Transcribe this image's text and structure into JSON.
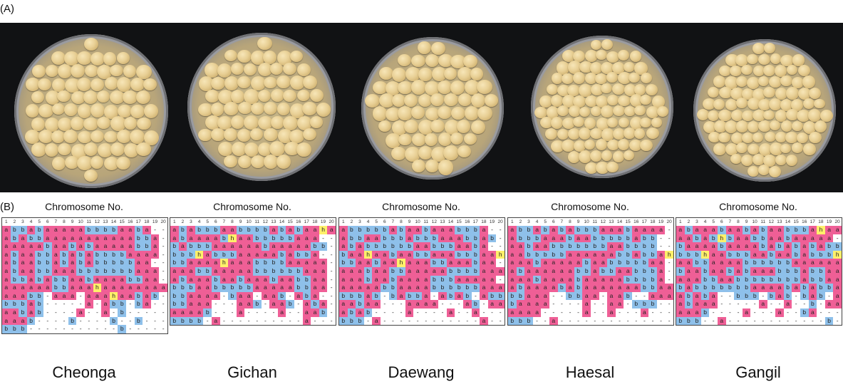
{
  "panel_a_label": "(A)",
  "panel_b_label": "(B)",
  "chromosome_title": "Chromosome No.",
  "chromosome_numbers": [
    "1",
    "2",
    "3",
    "4",
    "5",
    "6",
    "7",
    "8",
    "9",
    "10",
    "11",
    "12",
    "13",
    "14",
    "15",
    "16",
    "17",
    "18",
    "19",
    "20"
  ],
  "colors": {
    "a": "#ef5f96",
    "b": "#8ec0ea",
    "h": "#fff06a",
    "missing": "#ffffff",
    "background": "#111214"
  },
  "cultivars": [
    {
      "name": "Cheonga",
      "rows": [
        "abbabaaaaabbbbaaba",
        "ababbaaaaaaaaaaabba",
        "aaaaabaababaaaaabba",
        "abaabbabababbbbaaaa",
        "abaabbabababbbbbaa",
        "abaabbaaabbbbbbbaaa",
        "abbababbaabaaaabbaa",
        "aaaaaabbaaahaaaaaaaa",
        "aaabb-aaa-aaahaabab",
        "bbbab-----a-abb-ba-",
        "aabab----a--a-b---",
        "aaab----b----b--b---",
        "bbb-----------b----"
      ]
    },
    {
      "name": "Gichan",
      "rows": [
        "ababbbaabbbbababaahaa",
        "abaaaabhaabbbbbaaa",
        "babbbaaaaaabaaaaabb",
        "bbbhabbbaaaaababba",
        "bbaaaahaaabbbbaaaaa",
        "aaabbaaaaabbbbbbaaa",
        "abaaabaabaaabaabbaa",
        "bbbaabbbbbaaaaabbaa",
        "bbaaaa-baa-aab-aba-",
        "bbaaa---aab-aab-aba-",
        "aaaab---a----a--aab-",
        "bbbb-a----------a----"
      ]
    },
    {
      "name": "Daewang",
      "rows": [
        "abbbbbabaabaaabbba",
        "abbaabbbabbbaaabbab",
        "ababbbbbbaabbbaaba",
        "baahaabaabbaaabbbaah",
        "bbaabaahaaabbaaabaa",
        "aaabaabbaaaaabbbbaaa",
        "aaabaabaaaabbbaaaaa",
        "aaaaabbaaaabbbbbbaaa",
        "bbbab-babba-abab-abb-",
        "aabaa---aaaa---ab-aa-",
        "abab----a----a--a----",
        "bbb-a------------a----"
      ]
    },
    {
      "name": "Haesal",
      "rows": [
        "abbabababbbaaabaaaa",
        "abbbaaabaabbbbbabb",
        "aabaabbbbbbbaabbbb",
        "aabbbbbaaaaaabbabbah",
        "aaabaaaaabaabbbbbaa",
        "abaaaaaabbabbaabbba",
        "aaabaaaabaaaaabbbba",
        "abaaaababaaaaaaabbaa",
        "bbaaa--bbaa-aab--aaa",
        "baaaa----a--aa-bbb-",
        "aaaa-----a--a---a----",
        "bbb--a--------------"
      ]
    },
    {
      "name": "Gangil",
      "rows": [
        "abaaabaababaabbbahaa",
        "aababhbaabbaabaaaaa",
        "baaaabaaaabababababb",
        "bbbhaabbbaabaababbbh",
        "aabbaaaabbbbbbaaaaaa",
        "baabaababaaabbbabbaa",
        "aaabbaabbbbbbbbabbaa",
        "babbbbbbbaaaabababba",
        "ababa--bbb-bab-bab-ab",
        "abaaa-----a--a--b-aa",
        "aaab----a---a--ba----",
        "bbb--a------------b--"
      ]
    }
  ]
}
